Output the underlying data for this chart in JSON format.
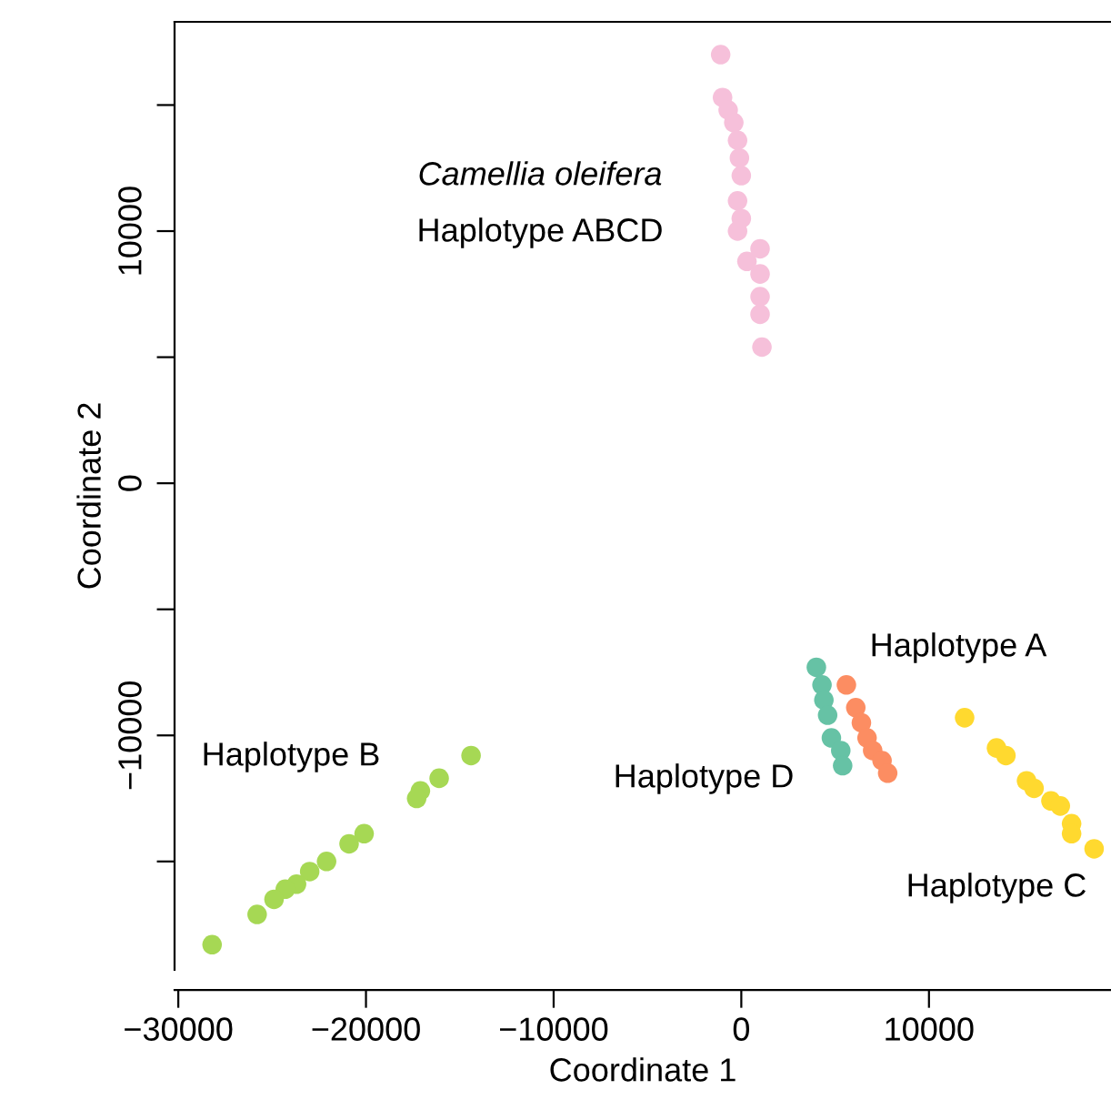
{
  "chart_data": {
    "type": "scatter",
    "xlabel": "Coordinate 1",
    "ylabel": "Coordinate 2",
    "xlim": [
      -30200,
      19700
    ],
    "ylim": [
      -19300,
      18300
    ],
    "xticks": [
      {
        "value": -30000,
        "label": "−30000"
      },
      {
        "value": -20000,
        "label": "−20000"
      },
      {
        "value": -10000,
        "label": "−10000"
      },
      0,
      10000
    ],
    "yticks": [
      {
        "value": -15000,
        "label": null
      },
      {
        "value": -10000,
        "label": "−10000"
      },
      {
        "value": -5000,
        "label": null
      },
      0,
      {
        "value": 5000,
        "label": null
      },
      10000,
      {
        "value": 15000,
        "label": null
      }
    ],
    "grid": false,
    "marker": "circle",
    "series": [
      {
        "color": "#f6c0da",
        "x": [
          -1100,
          -1000,
          -700,
          -400,
          -200,
          -100,
          0,
          -200,
          0,
          -200,
          300,
          1000,
          1000,
          1000,
          1000,
          1100
        ],
        "values": [
          17000,
          15300,
          14800,
          14300,
          13600,
          12900,
          12200,
          11200,
          10500,
          10000,
          8800,
          9300,
          8300,
          7400,
          6700,
          5400
        ]
      },
      {
        "color": "#66c2a5",
        "x": [
          4000,
          4300,
          4400,
          4600,
          4800,
          5300,
          5400
        ],
        "values": [
          -7300,
          -8000,
          -8600,
          -9200,
          -10100,
          -10600,
          -11200
        ]
      },
      {
        "color": "#fc8d62",
        "x": [
          5600,
          6100,
          6400,
          6700,
          7000,
          7500,
          7800
        ],
        "values": [
          -8000,
          -8900,
          -9500,
          -10100,
          -10600,
          -11000,
          -11500
        ]
      },
      {
        "color": "#ffd92f",
        "x": [
          11900,
          13600,
          14100,
          15200,
          15600,
          16500,
          17000,
          17600,
          17600,
          18800
        ],
        "values": [
          -9300,
          -10500,
          -10800,
          -11800,
          -12100,
          -12600,
          -12800,
          -13500,
          -13900,
          -14500
        ]
      },
      {
        "color": "#a6d854",
        "x": [
          -14400,
          -16100,
          -17100,
          -17300,
          -20100,
          -20900,
          -22100,
          -23000,
          -23700,
          -24300,
          -24900,
          -25800,
          -28200
        ],
        "values": [
          -10800,
          -11700,
          -12200,
          -12500,
          -13900,
          -14300,
          -15000,
          -15400,
          -15900,
          -16100,
          -16500,
          -17100,
          -18300
        ]
      }
    ],
    "annotations": [
      "Camellia oleifera",
      "Haplotype ABCD",
      "Haplotype A",
      "Haplotype D",
      "Haplotype B",
      "Haplotype C"
    ]
  }
}
